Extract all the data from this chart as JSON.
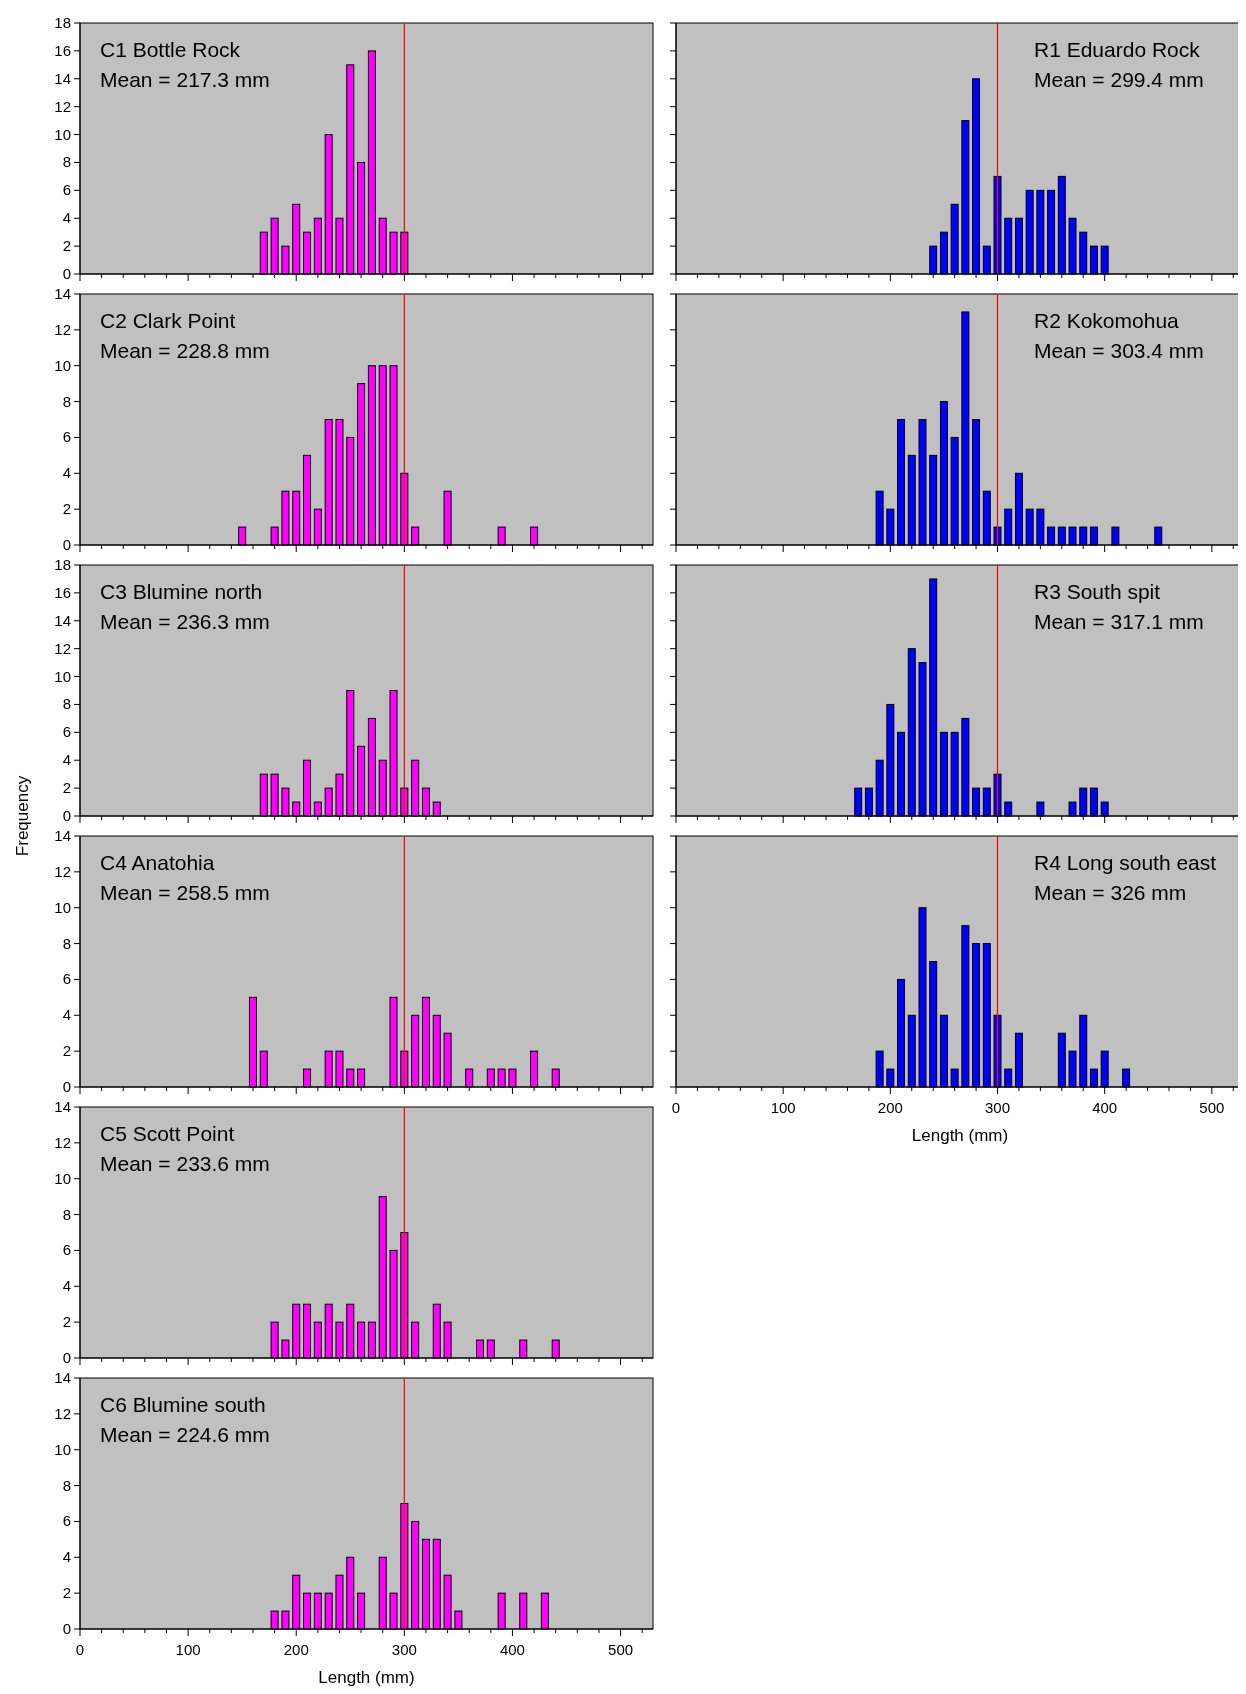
{
  "chart_data": [
    {
      "type": "bar",
      "title": "C1 Bottle Rock",
      "annotations": [
        "Mean = 217.3 mm"
      ],
      "x": [
        170,
        180,
        190,
        200,
        210,
        220,
        230,
        240,
        250,
        260,
        270,
        280,
        290,
        300
      ],
      "values": [
        3,
        4,
        2,
        5,
        3,
        4,
        10,
        4,
        15,
        8,
        16,
        4,
        3,
        3
      ],
      "color": "#ff00ff",
      "xlim": [
        0,
        530
      ],
      "xticks": [
        0,
        {
          "value": 20,
          "label": null
        },
        {
          "value": 40,
          "label": null
        },
        {
          "value": 60,
          "label": null
        },
        {
          "value": 80,
          "label": null
        },
        100,
        {
          "value": 120,
          "label": null
        },
        {
          "value": 140,
          "label": null
        },
        {
          "value": 160,
          "label": null
        },
        {
          "value": 180,
          "label": null
        },
        200,
        {
          "value": 220,
          "label": null
        },
        {
          "value": 240,
          "label": null
        },
        {
          "value": 260,
          "label": null
        },
        {
          "value": 280,
          "label": null
        },
        300,
        {
          "value": 320,
          "label": null
        },
        {
          "value": 340,
          "label": null
        },
        {
          "value": 360,
          "label": null
        },
        {
          "value": 380,
          "label": null
        },
        400,
        {
          "value": 420,
          "label": null
        },
        {
          "value": 440,
          "label": null
        },
        {
          "value": 460,
          "label": null
        },
        {
          "value": 480,
          "label": null
        },
        500,
        {
          "value": 520,
          "label": null
        }
      ],
      "ylim": [
        0,
        18
      ],
      "yticks": [
        0,
        2,
        4,
        6,
        8,
        10,
        12,
        14,
        16,
        18
      ],
      "tick_labels": "y",
      "ref_lines": [
        {
          "axis": "x",
          "value": 300,
          "color": "#ff0000"
        }
      ]
    },
    {
      "type": "bar",
      "title": "C2 Clark Point",
      "annotations": [
        "Mean = 228.8 mm"
      ],
      "x": [
        150,
        180,
        190,
        200,
        210,
        220,
        230,
        240,
        250,
        260,
        270,
        280,
        290,
        300,
        310,
        340,
        390,
        420
      ],
      "values": [
        1,
        1,
        3,
        3,
        5,
        2,
        7,
        7,
        6,
        9,
        10,
        10,
        10,
        4,
        1,
        3,
        1,
        1
      ],
      "color": "#ff00ff",
      "xlim": [
        0,
        530
      ],
      "xticks": [
        0,
        {
          "value": 20,
          "label": null
        },
        {
          "value": 40,
          "label": null
        },
        {
          "value": 60,
          "label": null
        },
        {
          "value": 80,
          "label": null
        },
        100,
        {
          "value": 120,
          "label": null
        },
        {
          "value": 140,
          "label": null
        },
        {
          "value": 160,
          "label": null
        },
        {
          "value": 180,
          "label": null
        },
        200,
        {
          "value": 220,
          "label": null
        },
        {
          "value": 240,
          "label": null
        },
        {
          "value": 260,
          "label": null
        },
        {
          "value": 280,
          "label": null
        },
        300,
        {
          "value": 320,
          "label": null
        },
        {
          "value": 340,
          "label": null
        },
        {
          "value": 360,
          "label": null
        },
        {
          "value": 380,
          "label": null
        },
        400,
        {
          "value": 420,
          "label": null
        },
        {
          "value": 440,
          "label": null
        },
        {
          "value": 460,
          "label": null
        },
        {
          "value": 480,
          "label": null
        },
        500,
        {
          "value": 520,
          "label": null
        }
      ],
      "ylim": [
        0,
        14
      ],
      "yticks": [
        0,
        2,
        4,
        6,
        8,
        10,
        12,
        14
      ],
      "tick_labels": "y",
      "ref_lines": [
        {
          "axis": "x",
          "value": 300,
          "color": "#ff0000"
        }
      ]
    },
    {
      "type": "bar",
      "title": "C3 Blumine north",
      "annotations": [
        "Mean = 236.3 mm"
      ],
      "ylabel": "Frequency",
      "x": [
        170,
        180,
        190,
        200,
        210,
        220,
        230,
        240,
        250,
        260,
        270,
        280,
        290,
        300,
        310,
        320,
        330
      ],
      "values": [
        3,
        3,
        2,
        1,
        4,
        1,
        2,
        3,
        9,
        5,
        7,
        4,
        9,
        2,
        4,
        2,
        1
      ],
      "color": "#ff00ff",
      "xlim": [
        0,
        530
      ],
      "xticks": [
        0,
        {
          "value": 20,
          "label": null
        },
        {
          "value": 40,
          "label": null
        },
        {
          "value": 60,
          "label": null
        },
        {
          "value": 80,
          "label": null
        },
        100,
        {
          "value": 120,
          "label": null
        },
        {
          "value": 140,
          "label": null
        },
        {
          "value": 160,
          "label": null
        },
        {
          "value": 180,
          "label": null
        },
        200,
        {
          "value": 220,
          "label": null
        },
        {
          "value": 240,
          "label": null
        },
        {
          "value": 260,
          "label": null
        },
        {
          "value": 280,
          "label": null
        },
        300,
        {
          "value": 320,
          "label": null
        },
        {
          "value": 340,
          "label": null
        },
        {
          "value": 360,
          "label": null
        },
        {
          "value": 380,
          "label": null
        },
        400,
        {
          "value": 420,
          "label": null
        },
        {
          "value": 440,
          "label": null
        },
        {
          "value": 460,
          "label": null
        },
        {
          "value": 480,
          "label": null
        },
        500,
        {
          "value": 520,
          "label": null
        }
      ],
      "ylim": [
        0,
        18
      ],
      "yticks": [
        0,
        2,
        4,
        6,
        8,
        10,
        12,
        14,
        16,
        18
      ],
      "tick_labels": "y",
      "ref_lines": [
        {
          "axis": "x",
          "value": 300,
          "color": "#ff0000"
        }
      ]
    },
    {
      "type": "bar",
      "title": "C4 Anatohia",
      "annotations": [
        "Mean = 258.5 mm"
      ],
      "x": [
        160,
        170,
        210,
        230,
        240,
        250,
        260,
        290,
        300,
        310,
        320,
        330,
        340,
        360,
        380,
        390,
        400,
        420,
        440
      ],
      "values": [
        5,
        2,
        1,
        2,
        2,
        1,
        1,
        5,
        2,
        4,
        5,
        4,
        3,
        1,
        1,
        1,
        1,
        2,
        1
      ],
      "color": "#ff00ff",
      "xlim": [
        0,
        530
      ],
      "xticks": [
        0,
        {
          "value": 20,
          "label": null
        },
        {
          "value": 40,
          "label": null
        },
        {
          "value": 60,
          "label": null
        },
        {
          "value": 80,
          "label": null
        },
        100,
        {
          "value": 120,
          "label": null
        },
        {
          "value": 140,
          "label": null
        },
        {
          "value": 160,
          "label": null
        },
        {
          "value": 180,
          "label": null
        },
        200,
        {
          "value": 220,
          "label": null
        },
        {
          "value": 240,
          "label": null
        },
        {
          "value": 260,
          "label": null
        },
        {
          "value": 280,
          "label": null
        },
        300,
        {
          "value": 320,
          "label": null
        },
        {
          "value": 340,
          "label": null
        },
        {
          "value": 360,
          "label": null
        },
        {
          "value": 380,
          "label": null
        },
        400,
        {
          "value": 420,
          "label": null
        },
        {
          "value": 440,
          "label": null
        },
        {
          "value": 460,
          "label": null
        },
        {
          "value": 480,
          "label": null
        },
        500,
        {
          "value": 520,
          "label": null
        }
      ],
      "ylim": [
        0,
        14
      ],
      "yticks": [
        0,
        2,
        4,
        6,
        8,
        10,
        12,
        14
      ],
      "tick_labels": "y",
      "ref_lines": [
        {
          "axis": "x",
          "value": 300,
          "color": "#ff0000"
        }
      ]
    },
    {
      "type": "bar",
      "title": "C5 Scott Point",
      "annotations": [
        "Mean = 233.6 mm"
      ],
      "x": [
        180,
        190,
        200,
        210,
        220,
        230,
        240,
        250,
        260,
        270,
        280,
        290,
        300,
        310,
        330,
        340,
        370,
        380,
        410,
        440
      ],
      "values": [
        2,
        1,
        3,
        3,
        2,
        3,
        2,
        3,
        2,
        2,
        9,
        6,
        7,
        2,
        3,
        2,
        1,
        1,
        1,
        1
      ],
      "color": "#ff00ff",
      "xlim": [
        0,
        530
      ],
      "xticks": [
        0,
        {
          "value": 20,
          "label": null
        },
        {
          "value": 40,
          "label": null
        },
        {
          "value": 60,
          "label": null
        },
        {
          "value": 80,
          "label": null
        },
        100,
        {
          "value": 120,
          "label": null
        },
        {
          "value": 140,
          "label": null
        },
        {
          "value": 160,
          "label": null
        },
        {
          "value": 180,
          "label": null
        },
        200,
        {
          "value": 220,
          "label": null
        },
        {
          "value": 240,
          "label": null
        },
        {
          "value": 260,
          "label": null
        },
        {
          "value": 280,
          "label": null
        },
        300,
        {
          "value": 320,
          "label": null
        },
        {
          "value": 340,
          "label": null
        },
        {
          "value": 360,
          "label": null
        },
        {
          "value": 380,
          "label": null
        },
        400,
        {
          "value": 420,
          "label": null
        },
        {
          "value": 440,
          "label": null
        },
        {
          "value": 460,
          "label": null
        },
        {
          "value": 480,
          "label": null
        },
        500,
        {
          "value": 520,
          "label": null
        }
      ],
      "ylim": [
        0,
        14
      ],
      "yticks": [
        0,
        2,
        4,
        6,
        8,
        10,
        12,
        14
      ],
      "tick_labels": "y",
      "ref_lines": [
        {
          "axis": "x",
          "value": 300,
          "color": "#ff0000"
        }
      ]
    },
    {
      "type": "bar",
      "title": "C6 Blumine south",
      "annotations": [
        "Mean = 224.6 mm"
      ],
      "xlabel": "Length (mm)",
      "x": [
        180,
        190,
        200,
        210,
        220,
        230,
        240,
        250,
        260,
        280,
        290,
        300,
        310,
        320,
        330,
        340,
        350,
        390,
        410,
        430
      ],
      "values": [
        1,
        1,
        3,
        2,
        2,
        2,
        3,
        4,
        2,
        4,
        2,
        7,
        6,
        5,
        5,
        3,
        1,
        2,
        2,
        2
      ],
      "color": "#ff00ff",
      "xlim": [
        0,
        530
      ],
      "xticks": [
        0,
        {
          "value": 20,
          "label": null
        },
        {
          "value": 40,
          "label": null
        },
        {
          "value": 60,
          "label": null
        },
        {
          "value": 80,
          "label": null
        },
        100,
        {
          "value": 120,
          "label": null
        },
        {
          "value": 140,
          "label": null
        },
        {
          "value": 160,
          "label": null
        },
        {
          "value": 180,
          "label": null
        },
        200,
        {
          "value": 220,
          "label": null
        },
        {
          "value": 240,
          "label": null
        },
        {
          "value": 260,
          "label": null
        },
        {
          "value": 280,
          "label": null
        },
        300,
        {
          "value": 320,
          "label": null
        },
        {
          "value": 340,
          "label": null
        },
        {
          "value": 360,
          "label": null
        },
        {
          "value": 380,
          "label": null
        },
        400,
        {
          "value": 420,
          "label": null
        },
        {
          "value": 440,
          "label": null
        },
        {
          "value": 460,
          "label": null
        },
        {
          "value": 480,
          "label": null
        },
        500,
        {
          "value": 520,
          "label": null
        }
      ],
      "ylim": [
        0,
        14
      ],
      "yticks": [
        0,
        2,
        4,
        6,
        8,
        10,
        12,
        14
      ],
      "ref_lines": [
        {
          "axis": "x",
          "value": 300,
          "color": "#ff0000"
        }
      ]
    },
    {
      "type": "bar",
      "title": "R1 Eduardo Rock",
      "annotations": [
        "Mean = 299.4 mm"
      ],
      "x": [
        240,
        250,
        260,
        270,
        280,
        290,
        300,
        310,
        320,
        330,
        340,
        350,
        360,
        370,
        380,
        390,
        400
      ],
      "values": [
        2,
        3,
        5,
        11,
        14,
        2,
        7,
        4,
        4,
        6,
        6,
        6,
        7,
        4,
        3,
        2,
        2
      ],
      "color": "#0000ff",
      "xlim": [
        0,
        530
      ],
      "xticks": [
        0,
        {
          "value": 20,
          "label": null
        },
        {
          "value": 40,
          "label": null
        },
        {
          "value": 60,
          "label": null
        },
        {
          "value": 80,
          "label": null
        },
        100,
        {
          "value": 120,
          "label": null
        },
        {
          "value": 140,
          "label": null
        },
        {
          "value": 160,
          "label": null
        },
        {
          "value": 180,
          "label": null
        },
        200,
        {
          "value": 220,
          "label": null
        },
        {
          "value": 240,
          "label": null
        },
        {
          "value": 260,
          "label": null
        },
        {
          "value": 280,
          "label": null
        },
        300,
        {
          "value": 320,
          "label": null
        },
        {
          "value": 340,
          "label": null
        },
        {
          "value": 360,
          "label": null
        },
        {
          "value": 380,
          "label": null
        },
        400,
        {
          "value": 420,
          "label": null
        },
        {
          "value": 440,
          "label": null
        },
        {
          "value": 460,
          "label": null
        },
        {
          "value": 480,
          "label": null
        },
        500,
        {
          "value": 520,
          "label": null
        }
      ],
      "ylim": [
        0,
        18
      ],
      "yticks": [
        0,
        2,
        4,
        6,
        8,
        10,
        12,
        14,
        16,
        18
      ],
      "tick_labels": false,
      "ref_lines": [
        {
          "axis": "x",
          "value": 300,
          "color": "#ff0000"
        }
      ]
    },
    {
      "type": "bar",
      "title": "R2 Kokomohua",
      "annotations": [
        "Mean = 303.4 mm"
      ],
      "x": [
        190,
        200,
        210,
        220,
        230,
        240,
        250,
        260,
        270,
        280,
        290,
        300,
        310,
        320,
        330,
        340,
        350,
        360,
        370,
        380,
        390,
        410,
        450
      ],
      "values": [
        3,
        2,
        7,
        5,
        7,
        5,
        8,
        6,
        13,
        7,
        3,
        1,
        2,
        4,
        2,
        2,
        1,
        1,
        1,
        1,
        1,
        1,
        1
      ],
      "color": "#0000ff",
      "xlim": [
        0,
        530
      ],
      "xticks": [
        0,
        {
          "value": 20,
          "label": null
        },
        {
          "value": 40,
          "label": null
        },
        {
          "value": 60,
          "label": null
        },
        {
          "value": 80,
          "label": null
        },
        100,
        {
          "value": 120,
          "label": null
        },
        {
          "value": 140,
          "label": null
        },
        {
          "value": 160,
          "label": null
        },
        {
          "value": 180,
          "label": null
        },
        200,
        {
          "value": 220,
          "label": null
        },
        {
          "value": 240,
          "label": null
        },
        {
          "value": 260,
          "label": null
        },
        {
          "value": 280,
          "label": null
        },
        300,
        {
          "value": 320,
          "label": null
        },
        {
          "value": 340,
          "label": null
        },
        {
          "value": 360,
          "label": null
        },
        {
          "value": 380,
          "label": null
        },
        400,
        {
          "value": 420,
          "label": null
        },
        {
          "value": 440,
          "label": null
        },
        {
          "value": 460,
          "label": null
        },
        {
          "value": 480,
          "label": null
        },
        500,
        {
          "value": 520,
          "label": null
        }
      ],
      "ylim": [
        0,
        14
      ],
      "yticks": [
        0,
        2,
        4,
        6,
        8,
        10,
        12,
        14
      ],
      "tick_labels": false,
      "ref_lines": [
        {
          "axis": "x",
          "value": 300,
          "color": "#ff0000"
        }
      ]
    },
    {
      "type": "bar",
      "title": "R3 South spit",
      "annotations": [
        "Mean = 317.1 mm"
      ],
      "x": [
        170,
        180,
        190,
        200,
        210,
        220,
        230,
        240,
        250,
        260,
        270,
        280,
        290,
        300,
        310,
        340,
        370,
        380,
        390,
        400
      ],
      "values": [
        2,
        2,
        4,
        8,
        6,
        12,
        11,
        17,
        6,
        6,
        7,
        2,
        2,
        3,
        1,
        1,
        1,
        2,
        2,
        1
      ],
      "color": "#0000ff",
      "xlim": [
        0,
        530
      ],
      "xticks": [
        0,
        {
          "value": 20,
          "label": null
        },
        {
          "value": 40,
          "label": null
        },
        {
          "value": 60,
          "label": null
        },
        {
          "value": 80,
          "label": null
        },
        100,
        {
          "value": 120,
          "label": null
        },
        {
          "value": 140,
          "label": null
        },
        {
          "value": 160,
          "label": null
        },
        {
          "value": 180,
          "label": null
        },
        200,
        {
          "value": 220,
          "label": null
        },
        {
          "value": 240,
          "label": null
        },
        {
          "value": 260,
          "label": null
        },
        {
          "value": 280,
          "label": null
        },
        300,
        {
          "value": 320,
          "label": null
        },
        {
          "value": 340,
          "label": null
        },
        {
          "value": 360,
          "label": null
        },
        {
          "value": 380,
          "label": null
        },
        400,
        {
          "value": 420,
          "label": null
        },
        {
          "value": 440,
          "label": null
        },
        {
          "value": 460,
          "label": null
        },
        {
          "value": 480,
          "label": null
        },
        500,
        {
          "value": 520,
          "label": null
        }
      ],
      "ylim": [
        0,
        18
      ],
      "yticks": [
        0,
        2,
        4,
        6,
        8,
        10,
        12,
        14,
        16,
        18
      ],
      "tick_labels": false,
      "ref_lines": [
        {
          "axis": "x",
          "value": 300,
          "color": "#ff0000"
        }
      ]
    },
    {
      "type": "bar",
      "title": "R4 Long south east",
      "annotations": [
        "Mean = 326 mm"
      ],
      "xlabel": "Length (mm)",
      "x": [
        190,
        200,
        210,
        220,
        230,
        240,
        250,
        260,
        270,
        280,
        290,
        300,
        310,
        320,
        360,
        370,
        380,
        390,
        400,
        420
      ],
      "values": [
        2,
        1,
        6,
        4,
        10,
        7,
        4,
        1,
        9,
        8,
        8,
        4,
        1,
        3,
        3,
        2,
        4,
        1,
        2,
        1
      ],
      "color": "#0000ff",
      "xlim": [
        0,
        530
      ],
      "xticks": [
        0,
        {
          "value": 20,
          "label": null
        },
        {
          "value": 40,
          "label": null
        },
        {
          "value": 60,
          "label": null
        },
        {
          "value": 80,
          "label": null
        },
        100,
        {
          "value": 120,
          "label": null
        },
        {
          "value": 140,
          "label": null
        },
        {
          "value": 160,
          "label": null
        },
        {
          "value": 180,
          "label": null
        },
        200,
        {
          "value": 220,
          "label": null
        },
        {
          "value": 240,
          "label": null
        },
        {
          "value": 260,
          "label": null
        },
        {
          "value": 280,
          "label": null
        },
        300,
        {
          "value": 320,
          "label": null
        },
        {
          "value": 340,
          "label": null
        },
        {
          "value": 360,
          "label": null
        },
        {
          "value": 380,
          "label": null
        },
        400,
        {
          "value": 420,
          "label": null
        },
        {
          "value": 440,
          "label": null
        },
        {
          "value": 460,
          "label": null
        },
        {
          "value": 480,
          "label": null
        },
        500,
        {
          "value": 520,
          "label": null
        }
      ],
      "ylim": [
        0,
        14
      ],
      "yticks": [
        0,
        2,
        4,
        6,
        8,
        10,
        12,
        14
      ],
      "tick_labels": "x",
      "ref_lines": [
        {
          "axis": "x",
          "value": 300,
          "color": "#ff0000"
        }
      ]
    }
  ]
}
